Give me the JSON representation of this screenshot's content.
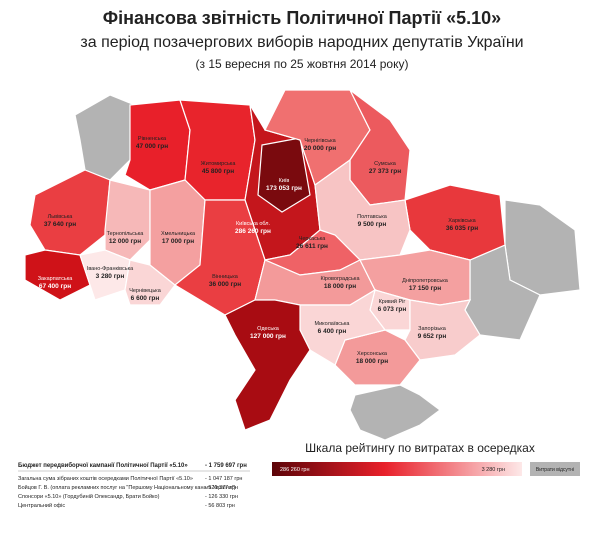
{
  "header": {
    "title": "Фінансова звітність Політичної Партії «5.10»",
    "subtitle": "за період позачергових виборів народних депутатів України",
    "period": "(з 15 вересня по 25 жовтня 2014 року)"
  },
  "regions": [
    {
      "name": "Рівненська",
      "amount": "47 000 грн",
      "color": "#e8202a"
    },
    {
      "name": "Житомирська",
      "amount": "45 800 грн",
      "color": "#e8242c"
    },
    {
      "name": "Київ",
      "amount": "173 053 грн",
      "color": "#7a0a0e"
    },
    {
      "name": "Чернігівська",
      "amount": "20 000 грн",
      "color": "#f07070"
    },
    {
      "name": "Сумська",
      "amount": "27 373 грн",
      "color": "#ec5a5e"
    },
    {
      "name": "Харківська",
      "amount": "36 035 грн",
      "color": "#e8383c"
    },
    {
      "name": "Полтавська",
      "amount": "9 500 грн",
      "color": "#f7c4c4"
    },
    {
      "name": "Київська обл.",
      "amount": "286 260 грн",
      "color": "#c4161c"
    },
    {
      "name": "Черкаська",
      "amount": "26 611 грн",
      "color": "#ef6266"
    },
    {
      "name": "Львівська",
      "amount": "37 640 грн",
      "color": "#ea3e42"
    },
    {
      "name": "Тернопільська",
      "amount": "12 000 грн",
      "color": "#f6b8b8"
    },
    {
      "name": "Хмельницька",
      "amount": "17 000 грн",
      "color": "#f4a0a0"
    },
    {
      "name": "Вінницька",
      "amount": "36 000 грн",
      "color": "#ea3e42"
    },
    {
      "name": "Закарпатська",
      "amount": "67 400 грн",
      "color": "#cf1218"
    },
    {
      "name": "Івано-Франківська",
      "amount": "3 280 грн",
      "color": "#fde8e8"
    },
    {
      "name": "Чернівецька",
      "amount": "6 600 грн",
      "color": "#fad6d6"
    },
    {
      "name": "Кіровоградська",
      "amount": "18 000 грн",
      "color": "#f39a9a"
    },
    {
      "name": "Дніпропетровська",
      "amount": "17 150 грн",
      "color": "#f4a0a0"
    },
    {
      "name": "Кривий Ріг",
      "amount": "6 073 грн",
      "color": "#fad6d6"
    },
    {
      "name": "Одеська",
      "amount": "127 000 грн",
      "color": "#a80c12"
    },
    {
      "name": "Миколаївська",
      "amount": "6 400 грн",
      "color": "#fad6d6"
    },
    {
      "name": "Запорізька",
      "amount": "9 652 грн",
      "color": "#f8cccc"
    },
    {
      "name": "Херсонська",
      "amount": "18 000 грн",
      "color": "#f39a9a"
    }
  ],
  "no_data_color": "#b3b3b3",
  "budget": {
    "title": "Бюджет передвиборчої кампанії Політичної Партії «5.10»",
    "total": "- 1 759 697 грн",
    "items": [
      {
        "label": "Загальна сума зібраних коштів осередками Політичної Партії «5.10»",
        "amount": "- 1 047 187 грн"
      },
      {
        "label": "Бойцов Г. В. (оплата рекламних послуг на \"Першому Національному каналі України\")",
        "amount": "- 529 377 грн"
      },
      {
        "label": "Спонсори «5.10» (Гордубиній Олександр, Брати Бойко)",
        "amount": "- 126 330 грн"
      },
      {
        "label": "Центральний офіс",
        "amount": "- 56 803 грн"
      }
    ]
  },
  "legend": {
    "title": "Шкала рейтингу по витратах в осередках",
    "max": "286 260 грн",
    "min": "3 280 грн",
    "none": "Витрати відсутні"
  }
}
